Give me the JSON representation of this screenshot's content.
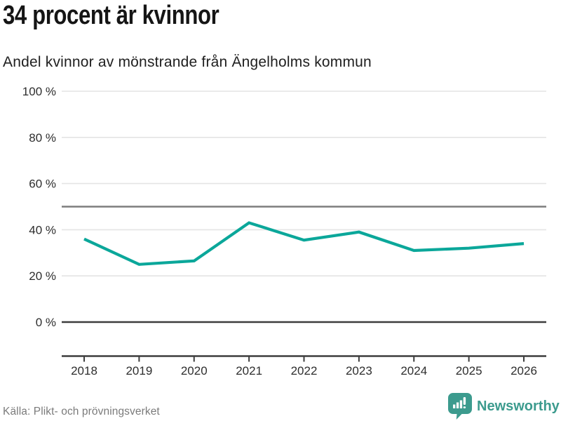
{
  "header": {
    "title": "34 procent är kvinnor",
    "subtitle": "Andel kvinnor av mönstrande från Ängelholms kommun"
  },
  "footer": {
    "source": "Källa: Plikt- och prövningsverket",
    "brand_name": "Newsworthy"
  },
  "colors": {
    "line": "#0ba79a",
    "grid": "#e4e4e4",
    "reference_line": "#7d7d7d",
    "zero_line": "#3d3d3d",
    "axis": "#3d3d3d",
    "tick_label": "#2e2e2e",
    "title_text": "#151515",
    "subtitle_text": "#202020",
    "source_text": "#7b7b7b",
    "brand": "#3c9b8e",
    "background": "#ffffff"
  },
  "chart_data": {
    "type": "line",
    "title": "34 procent är kvinnor",
    "subtitle": "Andel kvinnor av mönstrande från Ängelholms kommun",
    "categories": [
      "2018",
      "2019",
      "2020",
      "2021",
      "2022",
      "2023",
      "2024",
      "2025",
      "2026"
    ],
    "series": [
      {
        "name": "Andel kvinnor av mönstrande",
        "values": [
          36,
          25,
          26.5,
          43,
          35.5,
          39,
          31,
          32,
          34
        ]
      }
    ],
    "xlabel": "",
    "ylabel": "",
    "ylim": [
      0,
      100
    ],
    "yticks": [
      0,
      20,
      40,
      60,
      80,
      100
    ],
    "ytick_suffix": " %",
    "reference_value": 50,
    "grid": "horizontal",
    "legend": "none",
    "source": "Källa: Plikt- och prövningsverket"
  }
}
